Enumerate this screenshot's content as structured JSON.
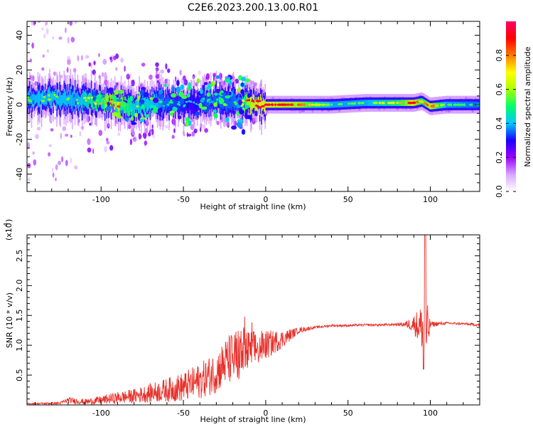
{
  "title": "C2E6.2023.200.13.00.R01",
  "chart_data": [
    {
      "type": "heatmap",
      "xlabel": "Height of straight line (km)",
      "ylabel": "Frequency (Hz)",
      "xlim": [
        -145,
        130
      ],
      "ylim": [
        -50,
        48
      ],
      "x_ticks": [
        -100,
        -50,
        0,
        50,
        100
      ],
      "y_ticks": [
        -40,
        -20,
        0,
        20,
        40
      ],
      "colorbar": {
        "label": "Normalized spectral amplitude",
        "range": [
          0,
          1
        ],
        "ticks": [
          "0.0",
          "0.2",
          "0.4",
          "0.6",
          "0.8"
        ],
        "colors": [
          "#ffffff",
          "#d9a6ff",
          "#9b00ff",
          "#1a00ff",
          "#00c8ff",
          "#00ff6a",
          "#aaff00",
          "#ffff00",
          "#ff7a00",
          "#ff0000",
          "#ff0066"
        ]
      },
      "ridge": {
        "description_free": true,
        "x": [
          -145,
          -130,
          -115,
          -100,
          -90,
          -80,
          -70,
          -60,
          -50,
          -45,
          -40,
          -35,
          -30,
          -25,
          -20,
          -15,
          -10,
          0,
          10,
          20,
          40,
          60,
          80,
          90,
          95,
          100,
          110,
          130
        ],
        "f": [
          3,
          4,
          3,
          2,
          1,
          -2,
          2,
          1,
          0,
          0,
          2,
          1,
          3,
          1,
          2,
          0,
          1,
          0,
          0,
          0,
          0,
          1,
          1,
          1,
          2,
          -1,
          0,
          0
        ],
        "amplitude": [
          0.55,
          0.6,
          0.55,
          0.75,
          0.9,
          0.6,
          0.6,
          0.5,
          0.45,
          0.4,
          0.45,
          0.5,
          0.5,
          0.5,
          0.5,
          0.55,
          0.9,
          0.95,
          0.9,
          0.85,
          0.55,
          0.55,
          0.7,
          0.95,
          0.7,
          0.9,
          0.55,
          0.5
        ]
      }
    },
    {
      "type": "line",
      "xlabel": "Height of straight line (km)",
      "ylabel": "SNR (10 * v/v)",
      "y_multiplier": "(x10",
      "y_multiplier_exp": "4",
      "xlim": [
        -145,
        130
      ],
      "ylim": [
        0,
        2.85
      ],
      "x_ticks": [
        -100,
        -50,
        0,
        50,
        100
      ],
      "y_ticks": [
        "0.5",
        "1.0",
        "1.5",
        "2.0",
        "2.5"
      ],
      "color": "#e8302a",
      "envelope": {
        "x": [
          -145,
          -125,
          -120,
          -110,
          -100,
          -90,
          -80,
          -70,
          -60,
          -50,
          -40,
          -30,
          -25,
          -20,
          -15,
          -10,
          -5,
          0,
          5,
          10,
          20,
          30,
          40,
          50,
          60,
          70,
          80,
          85,
          90,
          95,
          97,
          100,
          110,
          120,
          130
        ],
        "base": [
          0.02,
          0.03,
          0.08,
          0.05,
          0.08,
          0.12,
          0.15,
          0.2,
          0.25,
          0.3,
          0.4,
          0.55,
          0.7,
          0.8,
          0.85,
          0.9,
          0.95,
          1.0,
          1.05,
          1.1,
          1.25,
          1.3,
          1.33,
          1.33,
          1.34,
          1.34,
          1.35,
          1.35,
          1.36,
          1.3,
          1.1,
          1.35,
          1.37,
          1.36,
          1.34
        ],
        "noise": [
          0.01,
          0.02,
          0.05,
          0.05,
          0.07,
          0.1,
          0.12,
          0.16,
          0.2,
          0.25,
          0.3,
          0.35,
          0.4,
          0.45,
          0.5,
          0.35,
          0.3,
          0.25,
          0.2,
          0.15,
          0.05,
          0.02,
          0.02,
          0.02,
          0.02,
          0.02,
          0.02,
          0.05,
          0.15,
          0.4,
          0.8,
          0.05,
          0.02,
          0.02,
          0.02
        ]
      }
    }
  ]
}
